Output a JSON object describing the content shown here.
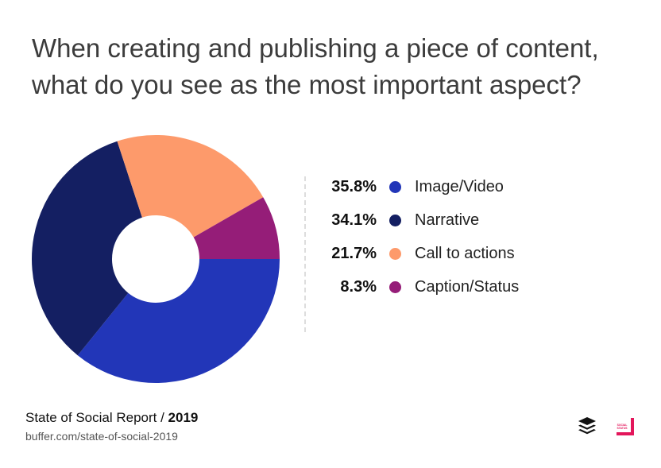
{
  "title_lines": [
    "When creating and publishing a piece of content,",
    "what do you see as the most important aspect?"
  ],
  "footer": {
    "report_name": "State of Social Report / ",
    "year": "2019",
    "url": "buffer.com/state-of-social-2019"
  },
  "logos": {
    "buffer": "buffer-logo-icon",
    "social_status": "SOCIAL STATUS"
  },
  "chart_data": {
    "type": "pie",
    "donut": true,
    "start_angle_deg": 0,
    "direction": "clockwise",
    "legend_position": "right",
    "slices": [
      {
        "label": "Image/Video",
        "value": 35.8,
        "display": "35.8%",
        "color": "#2236b8"
      },
      {
        "label": "Narrative",
        "value": 34.1,
        "display": "34.1%",
        "color": "#141f62"
      },
      {
        "label": "Call to actions",
        "value": 21.7,
        "display": "21.7%",
        "color": "#fd9a6b"
      },
      {
        "label": "Caption/Status",
        "value": 8.3,
        "display": "8.3%",
        "color": "#951d78"
      }
    ]
  }
}
